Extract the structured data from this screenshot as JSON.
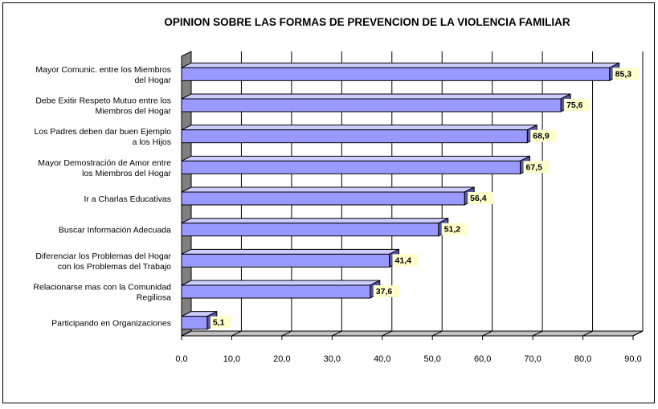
{
  "chart_data": {
    "type": "bar",
    "orientation": "horizontal",
    "title": "OPINION SOBRE LAS FORMAS DE PREVENCION DE LA VIOLENCIA FAMILIAR",
    "categories": [
      [
        "Mayor Comunic. entre los Miembros",
        "del Hogar"
      ],
      [
        "Debe Exitir Respeto Mutuo entre los",
        "Miembros del Hogar"
      ],
      [
        "Los Padres deben dar buen Ejemplo",
        "a los Hijos"
      ],
      [
        "Mayor Demostración de Amor entre",
        "los Miembros del Hogar"
      ],
      [
        "Ir a Charlas Educativas"
      ],
      [
        "Buscar Información Adecuada"
      ],
      [
        "Diferenciar los Problemas del Hogar",
        "con los Problemas del Trabajo"
      ],
      [
        "Relacionarse mas con la Comunidad",
        "Regiliosa"
      ],
      [
        "Participando en Organizaciones"
      ]
    ],
    "values": [
      85.3,
      75.6,
      68.9,
      67.5,
      56.4,
      51.2,
      41.4,
      37.6,
      5.1
    ],
    "data_labels": [
      "85,3",
      "75,6",
      "68,9",
      "67,5",
      "56,4",
      "51,2",
      "41,4",
      "37,6",
      "5,1"
    ],
    "xlim": [
      0,
      90
    ],
    "xticks": [
      "0,0",
      "10,0",
      "20,0",
      "30,0",
      "40,0",
      "50,0",
      "60,0",
      "70,0",
      "80,0",
      "90,0"
    ],
    "grid": true,
    "colors": {
      "bar": "#9999ff",
      "bar_top": "#ccccff",
      "bar_side": "#5555aa",
      "label_bg": "#ffffcc",
      "wall": "#808080"
    }
  }
}
